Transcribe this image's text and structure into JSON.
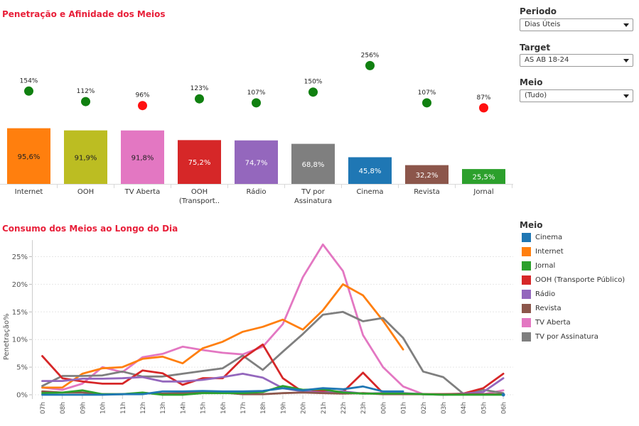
{
  "top_chart": {
    "title": "Penetração e Afinidade dos Meios",
    "chart_data": {
      "type": "bar",
      "categories": [
        "Internet",
        "OOH",
        "TV Aberta",
        "OOH (Transport..",
        "Rádio",
        "TV por Assinatura",
        "Cinema",
        "Revista",
        "Jornal"
      ],
      "category_lines": [
        [
          "Internet"
        ],
        [
          "OOH"
        ],
        [
          "TV Aberta"
        ],
        [
          "OOH",
          "(Transport.."
        ],
        [
          "Rádio"
        ],
        [
          "TV por",
          "Assinatura"
        ],
        [
          "Cinema"
        ],
        [
          "Revista"
        ],
        [
          "Jornal"
        ]
      ],
      "values": [
        95.6,
        91.9,
        91.8,
        75.2,
        74.7,
        68.8,
        45.8,
        32.2,
        25.5
      ],
      "value_labels": [
        "95,6%",
        "91,9%",
        "91,8%",
        "75,2%",
        "74,7%",
        "68,8%",
        "45,8%",
        "32,2%",
        "25,5%"
      ],
      "bar_colors": [
        "#ff7f0e",
        "#bcbd22",
        "#e377c2",
        "#d62728",
        "#9467bd",
        "#7f7f7f",
        "#1f77b4",
        "#8c564b",
        "#2ca02c"
      ],
      "affinity": [
        154,
        112,
        96,
        123,
        107,
        150,
        256,
        107,
        87
      ],
      "affinity_labels": [
        "154%",
        "112%",
        "96%",
        "123%",
        "107%",
        "150%",
        "256%",
        "107%",
        "87%"
      ],
      "affinity_colors": [
        "#108010",
        "#108010",
        "#ff1010",
        "#108010",
        "#108010",
        "#108010",
        "#108010",
        "#108010",
        "#ff1010"
      ]
    }
  },
  "filters": {
    "periodo": {
      "label": "Periodo",
      "value": "Dias Úteis"
    },
    "target": {
      "label": "Target",
      "value": "AS AB 18-24"
    },
    "meio": {
      "label": "Meio",
      "value": "(Tudo)"
    }
  },
  "bottom_chart": {
    "title": "Consumo dos Meios ao Longo do Dia",
    "chart_data": {
      "type": "line",
      "ylabel": "Penetração%",
      "ylim": [
        0,
        28
      ],
      "yticks": [
        "0%",
        "5%",
        "10%",
        "15%",
        "20%",
        "25%"
      ],
      "x": [
        "07h",
        "08h",
        "09h",
        "10h",
        "11h",
        "12h",
        "13h",
        "14h",
        "15h",
        "16h",
        "17h",
        "18h",
        "19h",
        "20h",
        "21h",
        "22h",
        "23h",
        "00h",
        "01h",
        "02h",
        "03h",
        "04h",
        "05h",
        "06h"
      ],
      "series": [
        {
          "name": "Cinema",
          "color": "#1f77b4",
          "values": [
            0,
            0,
            0,
            0,
            0.1,
            0.1,
            0.6,
            0.6,
            0.7,
            0.6,
            0.6,
            0.7,
            1.2,
            0.8,
            1.2,
            1.0,
            1.5,
            0.6,
            0.6,
            null,
            null,
            null,
            null,
            0
          ]
        },
        {
          "name": "Internet",
          "color": "#ff7f0e",
          "values": [
            1.3,
            1.3,
            3.8,
            4.8,
            5.0,
            6.5,
            6.9,
            5.7,
            8.4,
            9.6,
            11.4,
            12.3,
            13.6,
            11.8,
            15.3,
            20.0,
            18.0,
            13.4,
            8.2,
            null,
            null,
            null,
            null,
            null
          ]
        },
        {
          "name": "Jornal",
          "color": "#2ca02c",
          "values": [
            0.3,
            0.4,
            0.8,
            0.1,
            0.1,
            0.4,
            0,
            0,
            0.3,
            0.3,
            0.3,
            0.5,
            1.6,
            0.9,
            1.0,
            0.4,
            0.2,
            0.2,
            0.2,
            0.1,
            0,
            0,
            0,
            0
          ]
        },
        {
          "name": "OOH (Transporte Público)",
          "color": "#d62728",
          "values": [
            7.0,
            3.0,
            2.4,
            2.0,
            2.0,
            4.4,
            3.9,
            1.8,
            3.0,
            3.0,
            6.6,
            9.1,
            3.0,
            0.5,
            0.7,
            0.5,
            4.0,
            0.3,
            0.2,
            0.1,
            0.1,
            0.2,
            1.2,
            3.8
          ]
        },
        {
          "name": "Rádio",
          "color": "#9467bd",
          "values": [
            2.5,
            2.5,
            2.9,
            2.9,
            3.0,
            3.2,
            2.4,
            2.4,
            2.7,
            3.2,
            3.8,
            3.1,
            1.2,
            0.6,
            0.4,
            0.6,
            0.2,
            0.3,
            0.3,
            0.1,
            0,
            0.2,
            0.5,
            3.0
          ]
        },
        {
          "name": "Revista",
          "color": "#8c564b",
          "values": [
            0.6,
            0.4,
            0.4,
            0.1,
            0.1,
            0.3,
            0.2,
            0.3,
            0.4,
            0.4,
            0.1,
            0.1,
            0.3,
            0.4,
            0.3,
            0.2,
            0.3,
            0.1,
            0.1,
            0.1,
            0.1,
            0.1,
            0.1,
            0.1
          ]
        },
        {
          "name": "TV Aberta",
          "color": "#e377c2",
          "values": [
            1.3,
            0.9,
            2.0,
            5.0,
            4.1,
            6.8,
            7.4,
            8.7,
            8.1,
            7.6,
            7.3,
            8.7,
            12.8,
            21.3,
            27.2,
            22.4,
            10.8,
            5.0,
            1.5,
            0.1,
            0,
            0.1,
            0.1,
            0.8
          ]
        },
        {
          "name": "TV por Assinatura",
          "color": "#7f7f7f",
          "values": [
            1.6,
            3.4,
            3.4,
            3.5,
            4.2,
            3.3,
            3.3,
            3.8,
            4.3,
            4.8,
            7.1,
            4.5,
            7.8,
            11.0,
            14.5,
            15.0,
            13.3,
            13.9,
            10.3,
            4.2,
            3.2,
            0.2,
            0.9,
            0.3
          ]
        }
      ],
      "draw_order": [
        6,
        1,
        7,
        3,
        4,
        5,
        2,
        0
      ]
    }
  },
  "legend": {
    "title": "Meio",
    "items": [
      {
        "label": "Cinema",
        "color": "#1f77b4"
      },
      {
        "label": "Internet",
        "color": "#ff7f0e"
      },
      {
        "label": "Jornal",
        "color": "#2ca02c"
      },
      {
        "label": "OOH (Transporte Público)",
        "color": "#d62728"
      },
      {
        "label": "Rádio",
        "color": "#9467bd"
      },
      {
        "label": "Revista",
        "color": "#8c564b"
      },
      {
        "label": "TV Aberta",
        "color": "#e377c2"
      },
      {
        "label": "TV por Assinatura",
        "color": "#7f7f7f"
      }
    ]
  }
}
